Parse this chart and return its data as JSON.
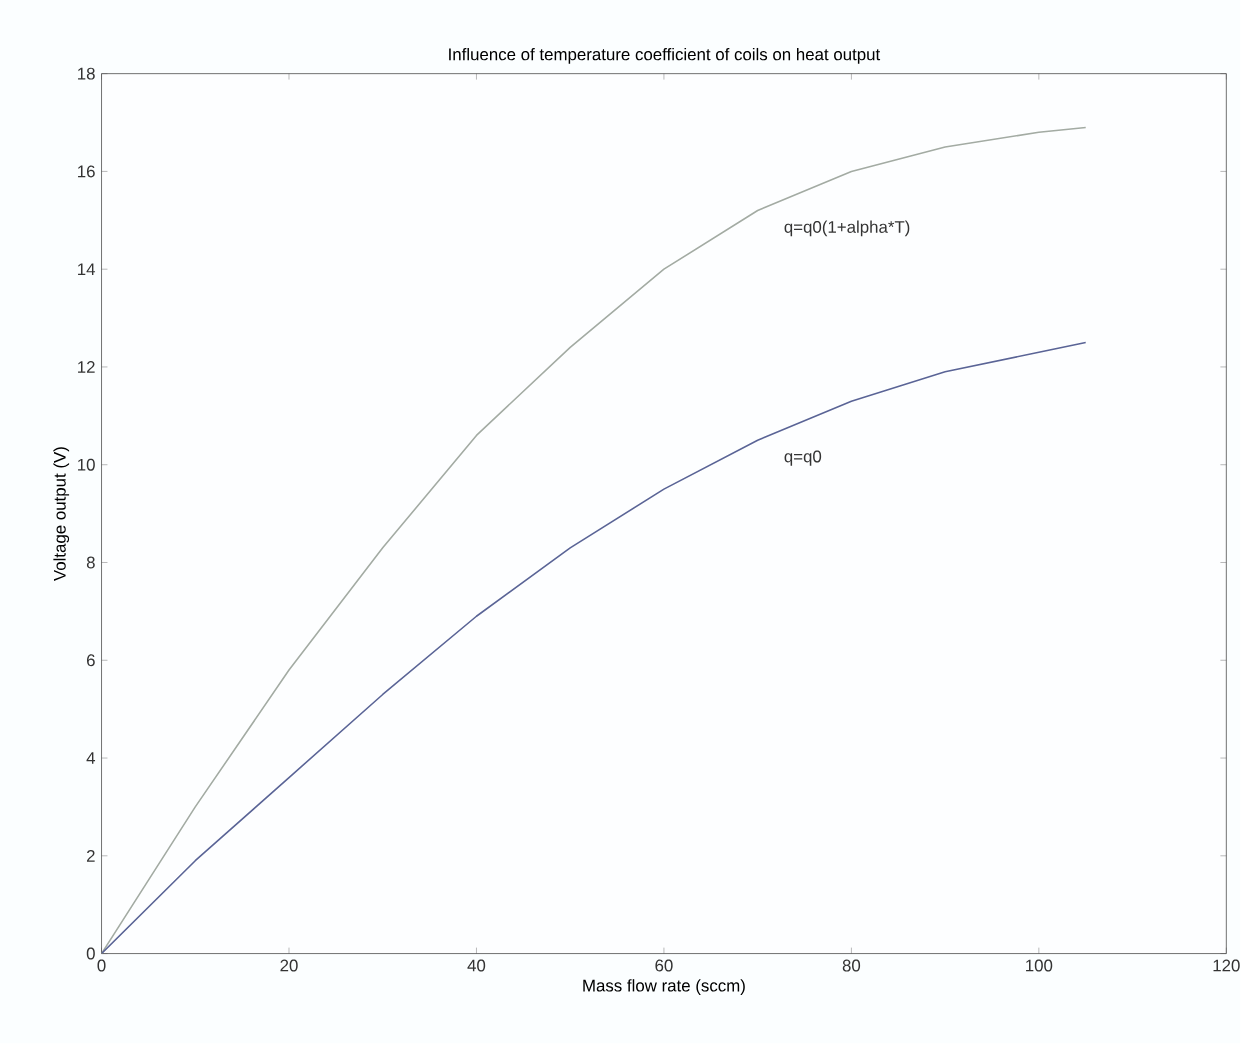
{
  "chart_data": {
    "type": "line",
    "title": "Influence of temperature coefficient of coils on heat output",
    "xlabel": "Mass flow rate (sccm)",
    "ylabel": "Voltage output (V)",
    "x": [
      0,
      10,
      20,
      30,
      40,
      50,
      60,
      70,
      80,
      90,
      100,
      105
    ],
    "series": [
      {
        "name": "q=q0(1+alpha*T)",
        "color": "#a3aba3",
        "values": [
          0,
          3.0,
          5.8,
          8.3,
          10.6,
          12.4,
          14.0,
          15.2,
          16.0,
          16.5,
          16.8,
          16.9
        ]
      },
      {
        "name": "q=q0",
        "color": "#5a6496",
        "values": [
          0,
          1.9,
          3.6,
          5.3,
          6.9,
          8.3,
          9.5,
          10.5,
          11.3,
          11.9,
          12.3,
          12.5
        ]
      }
    ],
    "xlim": [
      0,
      120
    ],
    "ylim": [
      0,
      18
    ],
    "xticks": [
      0,
      20,
      40,
      60,
      80,
      100,
      120
    ],
    "yticks": [
      0,
      2,
      4,
      6,
      8,
      10,
      12,
      14,
      16,
      18
    ],
    "grid": false,
    "legend": false,
    "marker": "none",
    "line_style": "solid"
  }
}
